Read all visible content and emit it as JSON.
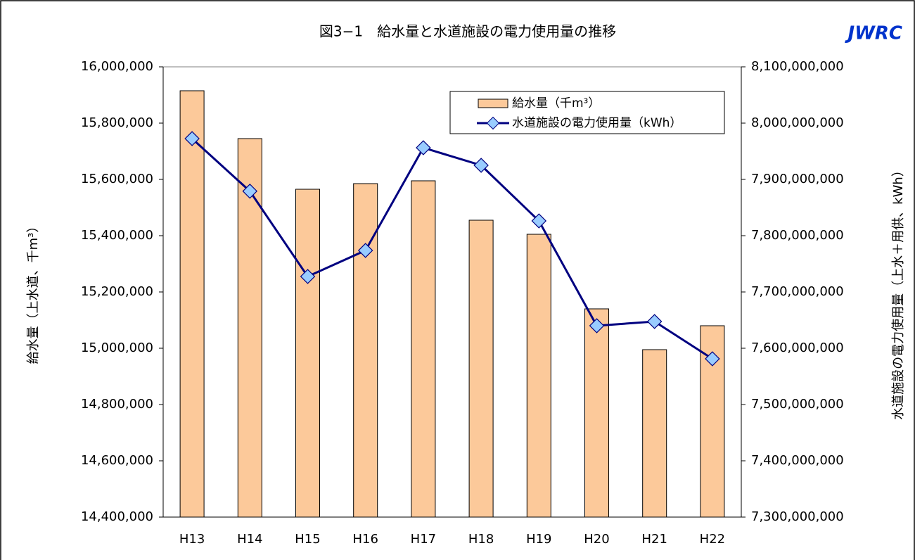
{
  "chart_data": {
    "type": "bar-line",
    "title": "図3−1　給水量と水道施設の電力使用量の推移",
    "logo": "JWRC",
    "y_label": "給水量（上水道、千m³）",
    "y2_label": "水道施設の電力使用量（上水＋用供、kWh）",
    "categories": [
      "H13",
      "H14",
      "H15",
      "H16",
      "H17",
      "H18",
      "H19",
      "H20",
      "H21",
      "H22"
    ],
    "series": [
      {
        "name": "給水量（千m³）",
        "type": "bar",
        "color": "#fcc99a",
        "values": [
          15915000,
          15745000,
          15565000,
          15585000,
          15595000,
          15455000,
          15405000,
          15140000,
          14995000,
          15080000
        ]
      },
      {
        "name": "水道施設の電力使用量（kWh）",
        "type": "line",
        "axis": "y2",
        "color": "#000080",
        "marker_color": "#99ccff",
        "values": [
          7972500000,
          7879000000,
          7727500000,
          7773750000,
          7956250000,
          7925000000,
          7826250000,
          7640000000,
          7647500000,
          7581250000
        ]
      }
    ],
    "ylim": [
      14400000,
      16000000
    ],
    "yticks": [
      {
        "value": 14400000,
        "label": "14,400,000"
      },
      {
        "value": 14600000,
        "label": "14,600,000"
      },
      {
        "value": 14800000,
        "label": "14,800,000"
      },
      {
        "value": 15000000,
        "label": "15,000,000"
      },
      {
        "value": 15200000,
        "label": "15,200,000"
      },
      {
        "value": 15400000,
        "label": "15,400,000"
      },
      {
        "value": 15600000,
        "label": "15,600,000"
      },
      {
        "value": 15800000,
        "label": "15,800,000"
      },
      {
        "value": 16000000,
        "label": "16,000,000"
      }
    ],
    "y2lim": [
      7300000000,
      8100000000
    ],
    "y2ticks": [
      {
        "value": 7300000000,
        "label": "7,300,000,000"
      },
      {
        "value": 7400000000,
        "label": "7,400,000,000"
      },
      {
        "value": 7500000000,
        "label": "7,500,000,000"
      },
      {
        "value": 7600000000,
        "label": "7,600,000,000"
      },
      {
        "value": 7700000000,
        "label": "7,700,000,000"
      },
      {
        "value": 7800000000,
        "label": "7,800,000,000"
      },
      {
        "value": 7900000000,
        "label": "7,900,000,000"
      },
      {
        "value": 8000000000,
        "label": "8,000,000,000"
      },
      {
        "value": 8100000000,
        "label": "8,100,000,000"
      }
    ],
    "legend": "upper-right"
  }
}
